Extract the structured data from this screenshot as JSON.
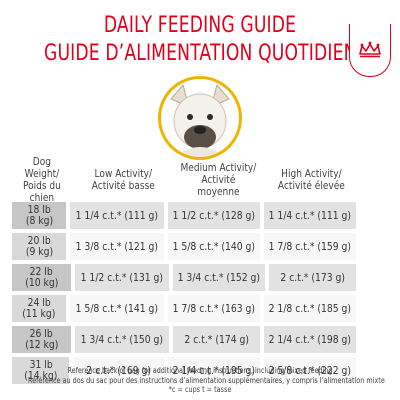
{
  "title": {
    "english": "DAILY FEEDING GUIDE",
    "french": "GUIDE D’ALIMENTATION QUOTIDIEN"
  },
  "brand_color": "#e1001a",
  "accent_color": "#f0b400",
  "headers": {
    "weight": [
      "Dog Weight/",
      "Poids du chien"
    ],
    "low": [
      "Low Activity/",
      "Activité basse"
    ],
    "medium": [
      "Medium Activity/",
      "Activité moyenne"
    ],
    "high": [
      "High Activity/",
      "Activité élevée"
    ]
  },
  "rows": [
    {
      "lb": "18 lb",
      "kg": "(8 kg)",
      "low": "1 1/4 c.t.* (111 g)",
      "medium": "1 1/2 c.t.* (128 g)",
      "high": "1 1/4 c.t.* (111 g)"
    },
    {
      "lb": "20 lb",
      "kg": "(9 kg)",
      "low": "1 3/8 c.t.* (121 g)",
      "medium": "1 5/8 c.t.* (140 g)",
      "high": "1 7/8 c.t.* (159 g)"
    },
    {
      "lb": "22 lb",
      "kg": "(10 kg)",
      "low": "1 1/2 c.t.* (131 g)",
      "medium": "1 3/4 c.t.* (152 g)",
      "high": "2 c.t.* (173 g)"
    },
    {
      "lb": "24 lb",
      "kg": "(11 kg)",
      "low": "1 5/8 c.t.* (141 g)",
      "medium": "1 7/8 c.t.* (163 g)",
      "high": "2 1/8 c.t.* (185 g)"
    },
    {
      "lb": "26 lb",
      "kg": "(12 kg)",
      "low": "1 3/4 c.t.* (150 g)",
      "medium": "2 c.t.* (174 g)",
      "high": "2 1/4 c.t.* (198 g)"
    },
    {
      "lb": "31 lb",
      "kg": "(14 kg)",
      "low": "2 c.t.* (169 g)",
      "medium": "2 1/4 c.t.* (195 g)",
      "high": "2 5/8 c.t.* (222 g)"
    }
  ],
  "footnotes": {
    "line1": "Reference back of bag for additional feeding instructions, including mixed feeding",
    "line2": "Référence au dos du sac pour des instructions d’alimentation supplémentaires, y compris l’alimentation mixte",
    "line3": "*c = cups t = tasse"
  }
}
